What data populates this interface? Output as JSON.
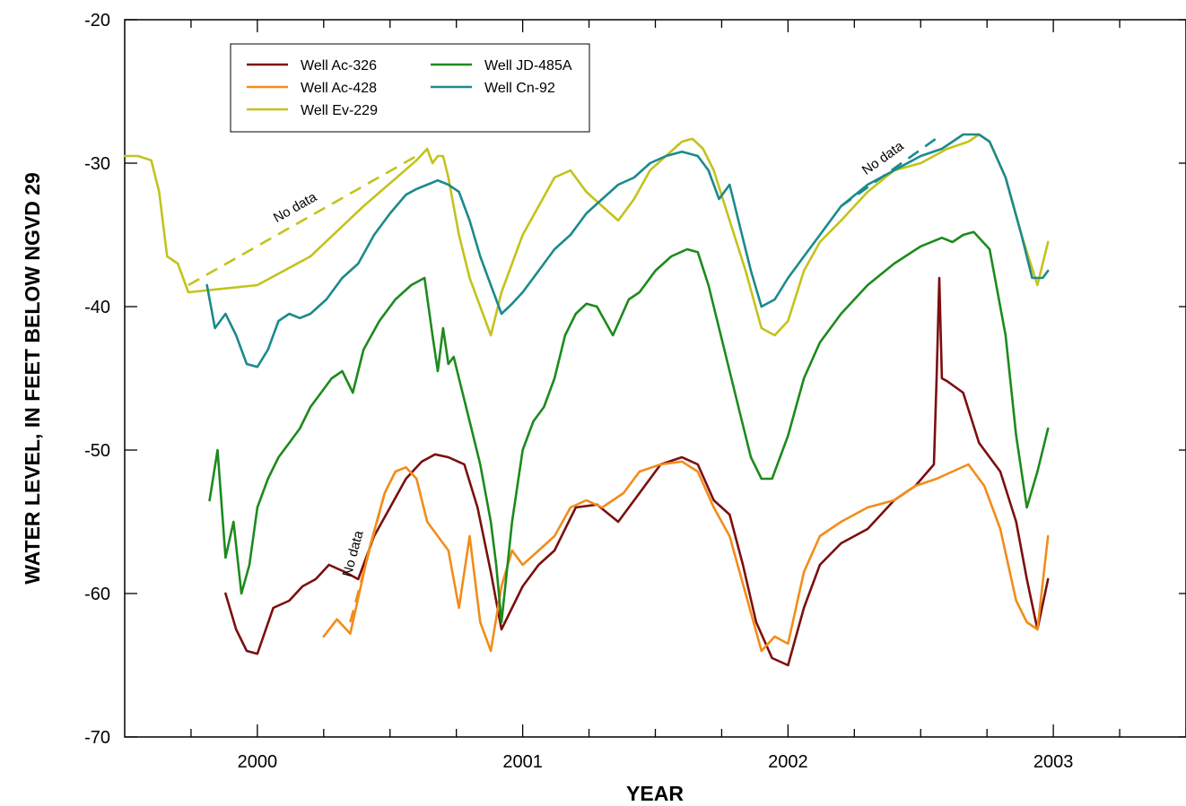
{
  "chart_data": {
    "type": "line",
    "title": "",
    "xlabel": "YEAR",
    "ylabel": "WATER LEVEL, IN FEET BELOW NGVD 29",
    "xlim": [
      1999.5,
      2003.5
    ],
    "ylim": [
      -70,
      -20
    ],
    "x_ticks": [
      2000,
      2001,
      2002,
      2003
    ],
    "x_tick_labels": [
      "2000",
      "2001",
      "2002",
      "2003"
    ],
    "y_ticks": [
      -70,
      -60,
      -50,
      -40,
      -30,
      -20
    ],
    "y_tick_labels": [
      "-70",
      "-60",
      "-50",
      "-40",
      "-30",
      "-20"
    ],
    "grid": false,
    "legend_position": "top-left",
    "series": [
      {
        "name": "Well Ac-326",
        "color": "#7b0f0f",
        "x": [
          1999.88,
          1999.92,
          1999.96,
          2000.0,
          2000.06,
          2000.12,
          2000.17,
          2000.22,
          2000.27,
          2000.33,
          2000.38,
          2000.44,
          2000.5,
          2000.56,
          2000.62,
          2000.67,
          2000.72,
          2000.78,
          2000.83,
          2000.88,
          2000.92,
          2000.96,
          2001.0,
          2001.06,
          2001.12,
          2001.2,
          2001.28,
          2001.36,
          2001.44,
          2001.52,
          2001.6,
          2001.66,
          2001.72,
          2001.78,
          2001.83,
          2001.88,
          2001.94,
          2002.0,
          2002.06,
          2002.12,
          2002.2,
          2002.3,
          2002.4,
          2002.48,
          2002.55,
          2002.56,
          2002.57,
          2002.58,
          2002.6,
          2002.66,
          2002.72,
          2002.8,
          2002.86,
          2002.9,
          2002.94,
          2002.98
        ],
        "y": [
          -60.0,
          -62.5,
          -64.0,
          -64.2,
          -61.0,
          -60.5,
          -59.5,
          -59.0,
          -58.0,
          -58.5,
          -59.0,
          -56.0,
          -54.0,
          -52.0,
          -50.8,
          -50.3,
          -50.5,
          -51.0,
          -54.0,
          -58.5,
          -62.5,
          -61.0,
          -59.5,
          -58.0,
          -57.0,
          -54.0,
          -53.8,
          -55.0,
          -53.0,
          -51.0,
          -50.5,
          -51.0,
          -53.5,
          -54.5,
          -58.0,
          -62.0,
          -64.5,
          -65.0,
          -61.0,
          -58.0,
          -56.5,
          -55.5,
          -53.5,
          -52.5,
          -51.0,
          -45.0,
          -38.0,
          -45.0,
          -45.2,
          -46.0,
          -49.5,
          -51.5,
          -55.0,
          -59.0,
          -62.5,
          -59.0
        ]
      },
      {
        "name": "Well Ac-428",
        "color": "#f28c1a",
        "x": [
          2000.25,
          2000.3,
          2000.35,
          2000.42,
          2000.48,
          2000.52,
          2000.56,
          2000.6,
          2000.64,
          2000.68,
          2000.72,
          2000.76,
          2000.8,
          2000.84,
          2000.88,
          2000.92,
          2000.96,
          2001.0,
          2001.06,
          2001.12,
          2001.18,
          2001.24,
          2001.3,
          2001.38,
          2001.44,
          2001.52,
          2001.6,
          2001.66,
          2001.72,
          2001.78,
          2001.84,
          2001.9,
          2001.95,
          2002.0,
          2002.06,
          2002.12,
          2002.2,
          2002.3,
          2002.4,
          2002.48,
          2002.56,
          2002.62,
          2002.68,
          2002.74,
          2002.8,
          2002.86,
          2002.9,
          2002.94,
          2002.98
        ],
        "y": [
          -63.0,
          -61.8,
          -62.8,
          -57.0,
          -53.0,
          -51.5,
          -51.2,
          -52.0,
          -55.0,
          -56.0,
          -57.0,
          -61.0,
          -56.0,
          -62.0,
          -64.0,
          -59.5,
          -57.0,
          -58.0,
          -57.0,
          -56.0,
          -54.0,
          -53.5,
          -54.0,
          -53.0,
          -51.5,
          -51.0,
          -50.8,
          -51.5,
          -54.0,
          -56.0,
          -60.0,
          -64.0,
          -63.0,
          -63.5,
          -58.5,
          -56.0,
          -55.0,
          -54.0,
          -53.5,
          -52.5,
          -52.0,
          -51.5,
          -51.0,
          -52.5,
          -55.5,
          -60.5,
          -62.0,
          -62.5,
          -56.0
        ]
      },
      {
        "name": "Well Ev-229",
        "color": "#c3c31c",
        "x": [
          1999.5,
          1999.55,
          1999.6,
          1999.63,
          1999.66,
          1999.7,
          1999.72,
          1999.74,
          2000.0,
          2000.2,
          2000.4,
          2000.6,
          2000.64,
          2000.66,
          2000.68,
          2000.7,
          2000.72,
          2000.76,
          2000.8,
          2000.84,
          2000.88,
          2000.92,
          2000.96,
          2001.0,
          2001.06,
          2001.12,
          2001.18,
          2001.24,
          2001.3,
          2001.36,
          2001.42,
          2001.48,
          2001.54,
          2001.6,
          2001.64,
          2001.68,
          2001.72,
          2001.78,
          2001.84,
          2001.9,
          2001.95,
          2002.0,
          2002.06,
          2002.12,
          2002.2,
          2002.3,
          2002.4,
          2002.5,
          2002.6,
          2002.68,
          2002.72,
          2002.76,
          2002.82,
          2002.88,
          2002.94,
          2002.98
        ],
        "y": [
          -29.5,
          -29.5,
          -29.8,
          -32.0,
          -36.5,
          -37.0,
          -38.0,
          -39.0,
          -38.5,
          -36.5,
          -33.0,
          -29.8,
          -29.0,
          -30.0,
          -29.5,
          -29.5,
          -31.0,
          -35.0,
          -38.0,
          -40.0,
          -42.0,
          -39.0,
          -37.0,
          -35.0,
          -33.0,
          -31.0,
          -30.5,
          -32.0,
          -33.0,
          -34.0,
          -32.5,
          -30.5,
          -29.5,
          -28.5,
          -28.3,
          -29.0,
          -30.5,
          -34.0,
          -37.5,
          -41.5,
          -42.0,
          -41.0,
          -37.5,
          -35.5,
          -34.0,
          -32.0,
          -30.5,
          -30.0,
          -29.0,
          -28.5,
          -28.0,
          -28.5,
          -31.0,
          -35.0,
          -38.5,
          -35.5
        ]
      },
      {
        "name": "Well JD-485A",
        "color": "#1d8a1d",
        "x": [
          1999.82,
          1999.85,
          1999.88,
          1999.91,
          1999.94,
          1999.97,
          2000.0,
          2000.04,
          2000.08,
          2000.12,
          2000.16,
          2000.2,
          2000.24,
          2000.28,
          2000.32,
          2000.36,
          2000.4,
          2000.46,
          2000.52,
          2000.58,
          2000.63,
          2000.66,
          2000.68,
          2000.7,
          2000.72,
          2000.74,
          2000.76,
          2000.8,
          2000.84,
          2000.88,
          2000.9,
          2000.92,
          2000.96,
          2001.0,
          2001.04,
          2001.08,
          2001.12,
          2001.16,
          2001.2,
          2001.24,
          2001.28,
          2001.34,
          2001.4,
          2001.44,
          2001.5,
          2001.56,
          2001.62,
          2001.66,
          2001.7,
          2001.74,
          2001.78,
          2001.82,
          2001.86,
          2001.9,
          2001.94,
          2002.0,
          2002.06,
          2002.12,
          2002.2,
          2002.3,
          2002.4,
          2002.5,
          2002.58,
          2002.62,
          2002.66,
          2002.7,
          2002.76,
          2002.82,
          2002.86,
          2002.9,
          2002.94,
          2002.98
        ],
        "y": [
          -53.5,
          -50.0,
          -57.5,
          -55.0,
          -60.0,
          -58.0,
          -54.0,
          -52.0,
          -50.5,
          -49.5,
          -48.5,
          -47.0,
          -46.0,
          -45.0,
          -44.5,
          -46.0,
          -43.0,
          -41.0,
          -39.5,
          -38.5,
          -38.0,
          -42.0,
          -44.5,
          -41.5,
          -44.0,
          -43.5,
          -45.0,
          -48.0,
          -51.0,
          -55.0,
          -58.0,
          -62.0,
          -55.0,
          -50.0,
          -48.0,
          -47.0,
          -45.0,
          -42.0,
          -40.5,
          -39.8,
          -40.0,
          -42.0,
          -39.5,
          -39.0,
          -37.5,
          -36.5,
          -36.0,
          -36.2,
          -38.5,
          -41.5,
          -44.5,
          -47.5,
          -50.5,
          -52.0,
          -52.0,
          -49.0,
          -45.0,
          -42.5,
          -40.5,
          -38.5,
          -37.0,
          -35.8,
          -35.2,
          -35.5,
          -35.0,
          -34.8,
          -36.0,
          -42.0,
          -49.0,
          -54.0,
          -51.5,
          -48.5
        ]
      },
      {
        "name": "Well Cn-92",
        "color": "#1b8a8c",
        "x": [
          1999.81,
          1999.84,
          1999.88,
          1999.92,
          1999.96,
          2000.0,
          2000.04,
          2000.08,
          2000.12,
          2000.16,
          2000.2,
          2000.26,
          2000.32,
          2000.38,
          2000.44,
          2000.5,
          2000.56,
          2000.6,
          2000.64,
          2000.68,
          2000.72,
          2000.76,
          2000.8,
          2000.84,
          2000.88,
          2000.92,
          2000.96,
          2001.0,
          2001.06,
          2001.12,
          2001.18,
          2001.24,
          2001.3,
          2001.36,
          2001.42,
          2001.48,
          2001.54,
          2001.6,
          2001.66,
          2001.7,
          2001.74,
          2001.78,
          2001.82,
          2001.86,
          2001.9,
          2001.95,
          2002.0,
          2002.06,
          2002.12,
          2002.2,
          2002.3,
          2002.4,
          2002.5,
          2002.58,
          2002.66,
          2002.72,
          2002.76,
          2002.82,
          2002.88,
          2002.92,
          2002.96,
          2002.98
        ],
        "y": [
          -38.5,
          -41.5,
          -40.5,
          -42.0,
          -44.0,
          -44.2,
          -43.0,
          -41.0,
          -40.5,
          -40.8,
          -40.5,
          -39.5,
          -38.0,
          -37.0,
          -35.0,
          -33.5,
          -32.2,
          -31.8,
          -31.5,
          -31.2,
          -31.5,
          -32.0,
          -34.0,
          -36.5,
          -38.5,
          -40.5,
          -39.8,
          -39.0,
          -37.5,
          -36.0,
          -35.0,
          -33.5,
          -32.5,
          -31.5,
          -31.0,
          -30.0,
          -29.5,
          -29.2,
          -29.5,
          -30.5,
          -32.5,
          -31.5,
          -34.5,
          -37.5,
          -40.0,
          -39.5,
          -38.0,
          -36.5,
          -35.0,
          -33.0,
          -31.5,
          -30.5,
          -29.5,
          -29.0,
          -28.0,
          -28.0,
          -28.5,
          -31.0,
          -35.0,
          -38.0,
          -38.0,
          -37.5
        ]
      }
    ],
    "gaps": [
      {
        "series": "Well Ev-229",
        "label": "No data",
        "x": [
          1999.74,
          2000.6
        ],
        "y": [
          -38.5,
          -29.5
        ]
      },
      {
        "series": "Well Ac-428",
        "label": "No data",
        "x": [
          2000.35,
          2000.48
        ],
        "y": [
          -62.0,
          -53.0
        ]
      },
      {
        "series": "Well Cn-92",
        "label": "No data",
        "x": [
          2002.2,
          2002.58
        ],
        "y": [
          -33.0,
          -28.0
        ]
      }
    ]
  }
}
